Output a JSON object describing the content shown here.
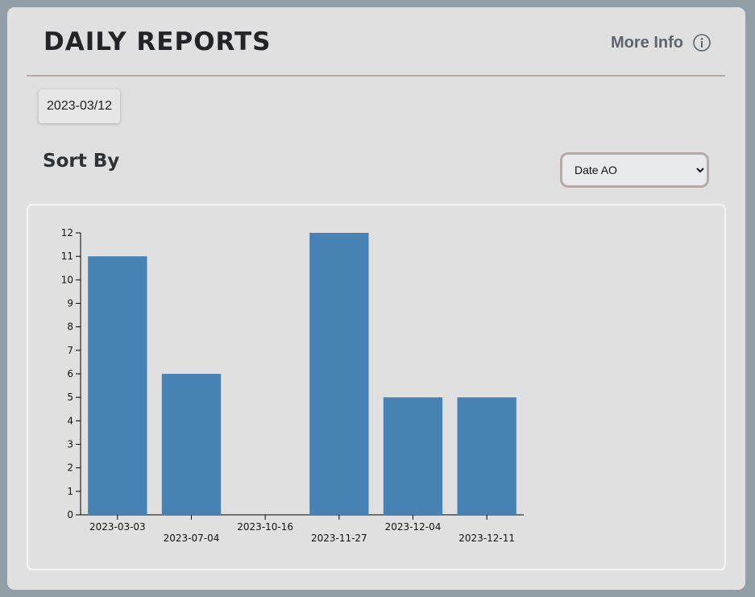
{
  "header": {
    "title": "DAILY REPORTS",
    "more_info_label": "More Info",
    "info_icon": "info-circle-icon"
  },
  "date_chip": {
    "value": "2023-03/12"
  },
  "sort": {
    "label": "Sort By",
    "selected": "Date AO",
    "options": [
      "Date AO"
    ]
  },
  "colors": {
    "bar": "#4682b4",
    "background": "#e0e0e0",
    "accent_border": "#b9aaa9"
  },
  "chart_data": {
    "type": "bar",
    "categories": [
      "2023-03-03",
      "2023-07-04",
      "2023-10-16",
      "2023-11-27",
      "2023-12-04",
      "2023-12-11"
    ],
    "values": [
      11,
      6,
      0,
      12,
      5,
      5
    ],
    "ylim": [
      0,
      12
    ],
    "yticks": [
      0,
      1,
      2,
      3,
      4,
      5,
      6,
      7,
      8,
      9,
      10,
      11,
      12
    ],
    "xlabel_stagger": true,
    "grid": false,
    "title": "",
    "xlabel": "",
    "ylabel": ""
  }
}
